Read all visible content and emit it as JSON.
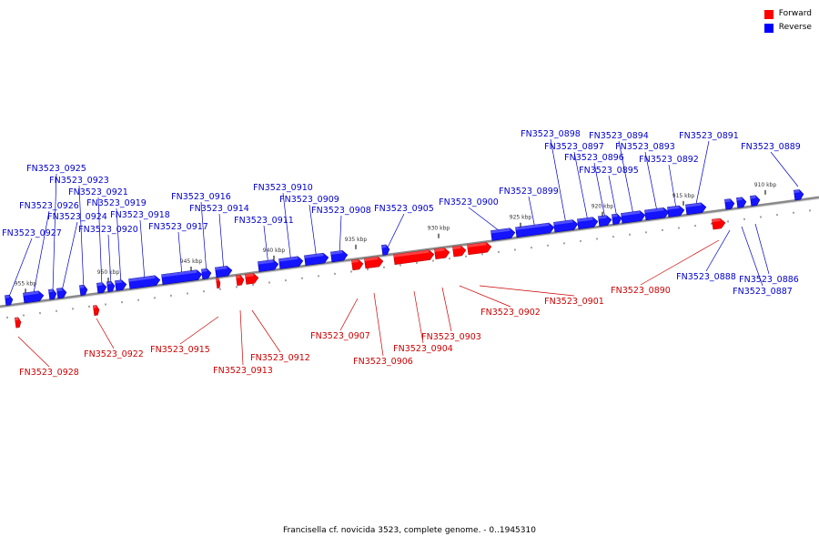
{
  "caption": "Francisella cf. novicida 3523, complete genome. - 0..1945310",
  "legend": [
    {
      "label": "Forward",
      "color": "#ff0000"
    },
    {
      "label": "Reverse",
      "color": "#0000ff"
    }
  ],
  "colors": {
    "forward": "#ff0000",
    "reverse": "#1414ff",
    "label_forward": "#cc0000",
    "label_reverse": "#0000cc",
    "axis": "#888888"
  },
  "tick_labels": [
    "955 kbp",
    "950 kbp",
    "945 kbp",
    "940 kbp",
    "935 kbp",
    "930 kbp",
    "925 kbp",
    "920 kbp",
    "915 kbp",
    "910 kbp"
  ],
  "genes": [
    {
      "id": "FN3523_0889",
      "strand": "reverse"
    },
    {
      "id": "FN3523_0891",
      "strand": "reverse"
    },
    {
      "id": "FN3523_0892",
      "strand": "reverse"
    },
    {
      "id": "FN3523_0893",
      "strand": "reverse"
    },
    {
      "id": "FN3523_0894",
      "strand": "reverse"
    },
    {
      "id": "FN3523_0895",
      "strand": "reverse"
    },
    {
      "id": "FN3523_0896",
      "strand": "reverse"
    },
    {
      "id": "FN3523_0897",
      "strand": "reverse"
    },
    {
      "id": "FN3523_0898",
      "strand": "reverse"
    },
    {
      "id": "FN3523_0899",
      "strand": "reverse"
    },
    {
      "id": "FN3523_0900",
      "strand": "reverse"
    },
    {
      "id": "FN3523_0905",
      "strand": "reverse"
    },
    {
      "id": "FN3523_0908",
      "strand": "reverse"
    },
    {
      "id": "FN3523_0909",
      "strand": "reverse"
    },
    {
      "id": "FN3523_0910",
      "strand": "reverse"
    },
    {
      "id": "FN3523_0911",
      "strand": "reverse"
    },
    {
      "id": "FN3523_0914",
      "strand": "reverse"
    },
    {
      "id": "FN3523_0916",
      "strand": "reverse"
    },
    {
      "id": "FN3523_0917",
      "strand": "reverse"
    },
    {
      "id": "FN3523_0918",
      "strand": "reverse"
    },
    {
      "id": "FN3523_0919",
      "strand": "reverse"
    },
    {
      "id": "FN3523_0920",
      "strand": "reverse"
    },
    {
      "id": "FN3523_0921",
      "strand": "reverse"
    },
    {
      "id": "FN3523_0923",
      "strand": "reverse"
    },
    {
      "id": "FN3523_0924",
      "strand": "reverse"
    },
    {
      "id": "FN3523_0925",
      "strand": "reverse"
    },
    {
      "id": "FN3523_0926",
      "strand": "reverse"
    },
    {
      "id": "FN3523_0927",
      "strand": "reverse"
    },
    {
      "id": "FN3523_0886",
      "strand": "reverse"
    },
    {
      "id": "FN3523_0887",
      "strand": "reverse"
    },
    {
      "id": "FN3523_0888",
      "strand": "reverse"
    },
    {
      "id": "FN3523_0890",
      "strand": "forward"
    },
    {
      "id": "FN3523_0901",
      "strand": "forward"
    },
    {
      "id": "FN3523_0902",
      "strand": "forward"
    },
    {
      "id": "FN3523_0903",
      "strand": "forward"
    },
    {
      "id": "FN3523_0904",
      "strand": "forward"
    },
    {
      "id": "FN3523_0906",
      "strand": "forward"
    },
    {
      "id": "FN3523_0907",
      "strand": "forward"
    },
    {
      "id": "FN3523_0912",
      "strand": "forward"
    },
    {
      "id": "FN3523_0913",
      "strand": "forward"
    },
    {
      "id": "FN3523_0915",
      "strand": "forward"
    },
    {
      "id": "FN3523_0922",
      "strand": "forward"
    },
    {
      "id": "FN3523_0928",
      "strand": "forward"
    }
  ]
}
